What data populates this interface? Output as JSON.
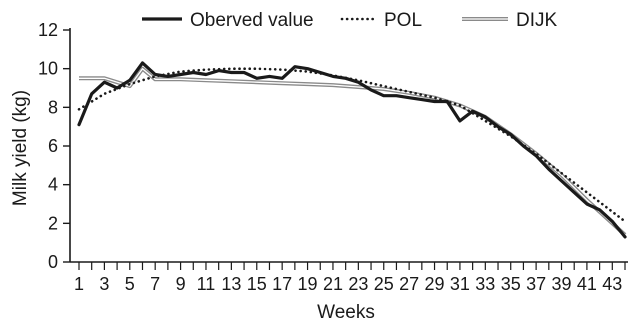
{
  "chart_data": {
    "type": "line",
    "xlabel": "Weeks",
    "ylabel": "Milk yield (kg)",
    "ylim": [
      0,
      12
    ],
    "yticks": [
      0,
      2,
      4,
      6,
      8,
      10,
      12
    ],
    "xlim": [
      1,
      44
    ],
    "xtick_labels": [
      "1",
      "3",
      "5",
      "7",
      "9",
      "11",
      "13",
      "15",
      "17",
      "19",
      "21",
      "23",
      "25",
      "27",
      "29",
      "31",
      "33",
      "35",
      "37",
      "39",
      "41",
      "43"
    ],
    "legend_position": "top-right",
    "grid": false,
    "series": [
      {
        "name": "Oberved value",
        "style": "solid-thick",
        "color": "#1a1a1a",
        "x": [
          1,
          2,
          3,
          4,
          5,
          6,
          7,
          8,
          9,
          10,
          11,
          12,
          13,
          14,
          15,
          16,
          17,
          18,
          19,
          20,
          21,
          22,
          23,
          24,
          25,
          26,
          27,
          28,
          29,
          30,
          31,
          32,
          33,
          34,
          35,
          36,
          37,
          38,
          39,
          40,
          41,
          42,
          43,
          44
        ],
        "y": [
          7.1,
          8.7,
          9.3,
          9.0,
          9.4,
          10.3,
          9.7,
          9.6,
          9.7,
          9.8,
          9.7,
          9.9,
          9.8,
          9.8,
          9.5,
          9.6,
          9.5,
          10.1,
          10.0,
          9.8,
          9.6,
          9.5,
          9.3,
          8.9,
          8.6,
          8.6,
          8.5,
          8.4,
          8.3,
          8.3,
          7.3,
          7.8,
          7.5,
          7.0,
          6.6,
          6.0,
          5.5,
          4.8,
          4.2,
          3.6,
          3.0,
          2.7,
          2.1,
          1.3
        ]
      },
      {
        "name": "POL",
        "style": "dotted",
        "color": "#1a1a1a",
        "x": [
          1,
          3,
          5,
          7,
          9,
          11,
          13,
          15,
          17,
          19,
          21,
          23,
          25,
          27,
          29,
          31,
          33,
          35,
          37,
          39,
          41,
          43,
          44
        ],
        "y": [
          7.9,
          8.7,
          9.2,
          9.6,
          9.85,
          9.95,
          10.0,
          10.0,
          9.95,
          9.85,
          9.65,
          9.4,
          9.1,
          8.8,
          8.5,
          8.1,
          7.3,
          6.5,
          5.6,
          4.6,
          3.6,
          2.6,
          2.1
        ]
      },
      {
        "name": "DIJK",
        "style": "double-gray",
        "color": "#8a8a8a",
        "x": [
          1,
          3,
          5,
          6,
          7,
          9,
          11,
          13,
          15,
          17,
          19,
          21,
          23,
          25,
          27,
          29,
          31,
          33,
          35,
          37,
          39,
          41,
          43,
          44
        ],
        "y": [
          9.5,
          9.5,
          9.1,
          10.0,
          9.45,
          9.45,
          9.4,
          9.35,
          9.3,
          9.25,
          9.2,
          9.15,
          9.05,
          8.95,
          8.75,
          8.5,
          8.1,
          7.5,
          6.6,
          5.6,
          4.5,
          3.2,
          2.0,
          1.4
        ]
      }
    ]
  }
}
